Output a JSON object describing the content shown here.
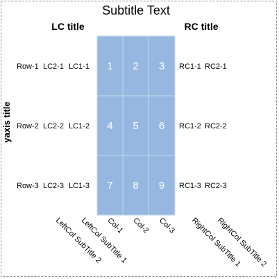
{
  "chart_data": {
    "type": "table",
    "title": "Subtitle Text",
    "left_title": "LC title",
    "right_title": "RC title",
    "ylabel": "yaxis title",
    "cell_color": "#96b8e0",
    "columns": [
      "Col-1",
      "Col-2",
      "Col-3"
    ],
    "rows": [
      "Row-1",
      "Row-2",
      "Row-3"
    ],
    "left_cols": [
      {
        "subtitle": "LeftCol SubTitle 2",
        "values": [
          "LC2-1",
          "LC2-2",
          "LC2-3"
        ]
      },
      {
        "subtitle": "LeftCol SubTitle 1",
        "values": [
          "LC1-1",
          "LC1-2",
          "LC1-3"
        ]
      }
    ],
    "right_cols": [
      {
        "subtitle": "RightCol SubTitle 1",
        "values": [
          "RC1-1",
          "RC1-2",
          "RC1-3"
        ]
      },
      {
        "subtitle": "RightCol SubTitle 2",
        "values": [
          "RC2-1",
          "RC2-2",
          "RC2-3"
        ]
      }
    ],
    "cells": [
      [
        1,
        2,
        3
      ],
      [
        4,
        5,
        6
      ],
      [
        7,
        8,
        9
      ]
    ]
  }
}
